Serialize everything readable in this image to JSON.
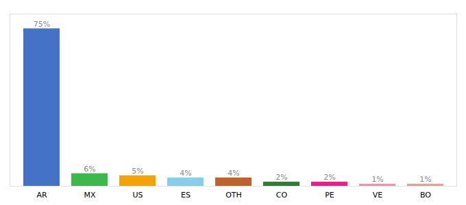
{
  "chart_data": {
    "type": "bar",
    "categories": [
      "AR",
      "MX",
      "US",
      "ES",
      "OTH",
      "CO",
      "PE",
      "VE",
      "BO"
    ],
    "values": [
      75,
      6,
      5,
      4,
      4,
      2,
      2,
      1,
      1
    ],
    "value_labels": [
      "75%",
      "6%",
      "5%",
      "4%",
      "4%",
      "2%",
      "2%",
      "1%",
      "1%"
    ],
    "colors": [
      "#4472c4",
      "#3cb94a",
      "#f4a300",
      "#87ceeb",
      "#c0622b",
      "#2e7d32",
      "#e91e8c",
      "#f48fb1",
      "#e8a090"
    ],
    "ylim": [
      0,
      82
    ],
    "grid": false,
    "data_labels": true,
    "tick_labels": "x"
  }
}
